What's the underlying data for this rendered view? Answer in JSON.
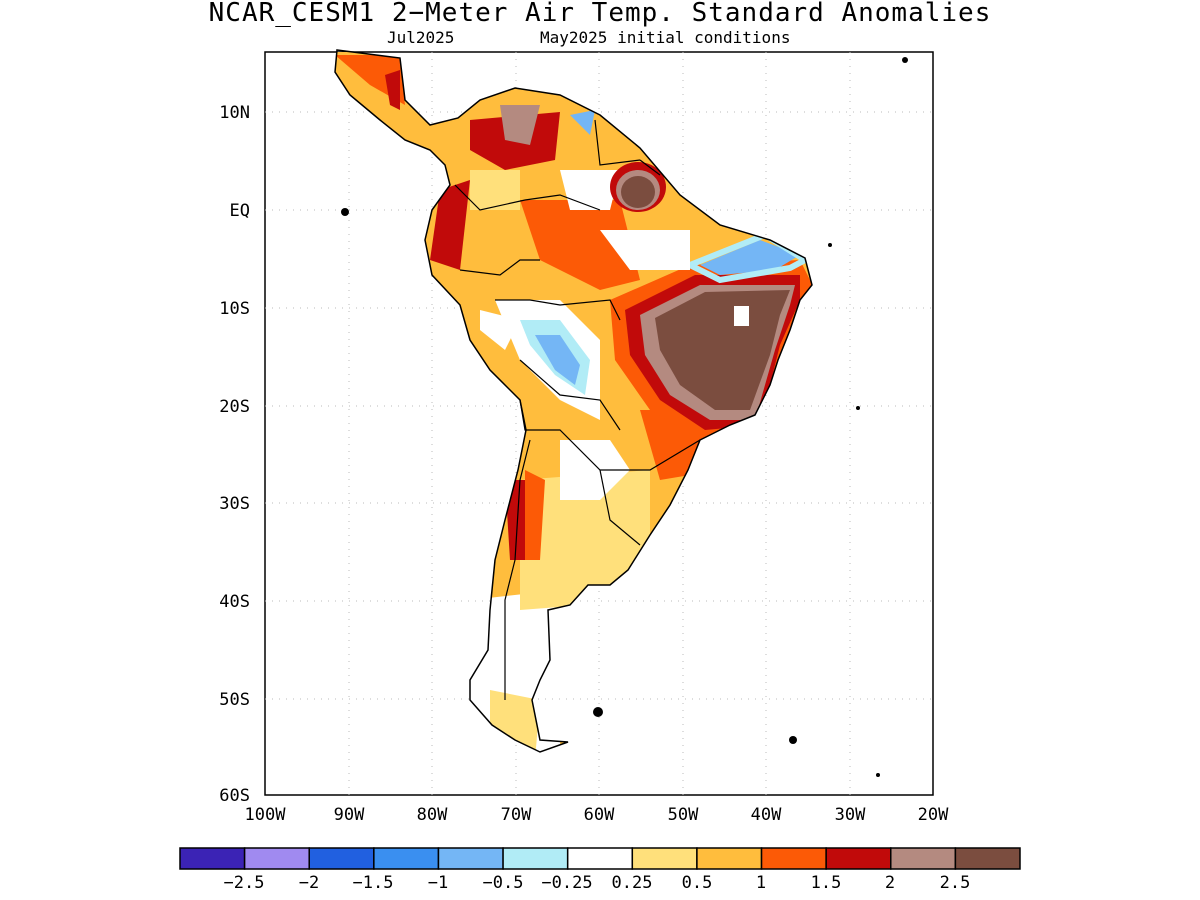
{
  "title": "NCAR_CESM1 2−Meter Air Temp. Standard Anomalies",
  "valid_month": "Jul2025",
  "init_label": "May2025 initial conditions",
  "lat_labels": [
    "10N",
    "EQ",
    "10S",
    "20S",
    "30S",
    "40S",
    "50S",
    "60S"
  ],
  "lon_labels": [
    "100W",
    "90W",
    "80W",
    "70W",
    "60W",
    "50W",
    "40W",
    "30W",
    "20W"
  ],
  "colorbar": {
    "colors": [
      "#3b23b5",
      "#a08af0",
      "#2160e0",
      "#3a8ff0",
      "#74b6f5",
      "#b1ecf6",
      "#ffffff",
      "#ffe07b",
      "#ffbd3d",
      "#fc5a06",
      "#c10a0a",
      "#b48a80",
      "#7b4d3f"
    ],
    "labels": [
      "−2.5",
      "−2",
      "−1.5",
      "−1",
      "−0.5",
      "−0.25",
      "0.25",
      "0.5",
      "1",
      "1.5",
      "2",
      "2.5"
    ]
  },
  "map_data": {
    "domain": {
      "lon": [
        -100,
        -20
      ],
      "lat": [
        -60,
        15
      ]
    },
    "features": [
      {
        "name": "northeast-brazil-maximum",
        "level": "2.5+",
        "color": "#7b4d3f"
      },
      {
        "name": "guiana-maximum",
        "level": "2.5+",
        "color": "#7b4d3f"
      },
      {
        "name": "venezuela-maximum",
        "level": "2–2.5",
        "color": "#b48a80"
      },
      {
        "name": "bolivia-cool-spot",
        "level": "-1 to -0.5",
        "color": "#74b6f5"
      },
      {
        "name": "ne-coast-cool-spot",
        "level": "-1 to -0.5",
        "color": "#74b6f5"
      }
    ]
  }
}
